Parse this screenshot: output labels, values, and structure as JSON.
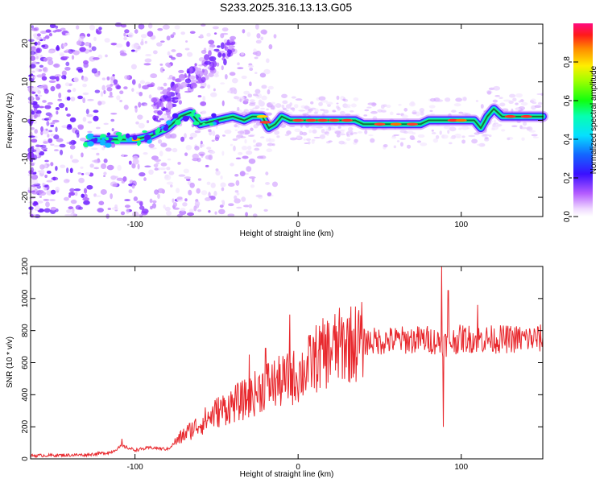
{
  "title": "S233.2025.316.13.13.G05",
  "chart_data": [
    {
      "type": "heatmap",
      "name": "spectrogram",
      "xlabel": "Height of straight line (km)",
      "ylabel": "Frequency (Hz)",
      "xlim": [
        -164,
        150
      ],
      "ylim": [
        -25,
        25
      ],
      "xticks": [
        -100,
        0,
        100
      ],
      "yticks": [
        -20,
        -10,
        0,
        10,
        20
      ],
      "ridge": [
        [
          -126,
          -5
        ],
        [
          -115,
          -5
        ],
        [
          -100,
          -5
        ],
        [
          -90,
          -4
        ],
        [
          -80,
          -2
        ],
        [
          -72,
          1
        ],
        [
          -66,
          2
        ],
        [
          -60,
          -1
        ],
        [
          -50,
          0
        ],
        [
          -40,
          1
        ],
        [
          -33,
          0
        ],
        [
          -28,
          1
        ],
        [
          -22,
          1
        ],
        [
          -18,
          -2
        ],
        [
          -14,
          -1
        ],
        [
          -10,
          1
        ],
        [
          -5,
          0
        ],
        [
          0,
          0
        ],
        [
          20,
          0
        ],
        [
          35,
          0
        ],
        [
          40,
          -1
        ],
        [
          60,
          -1
        ],
        [
          75,
          -1
        ],
        [
          80,
          0
        ],
        [
          100,
          0
        ],
        [
          108,
          0
        ],
        [
          112,
          -2
        ],
        [
          116,
          1
        ],
        [
          120,
          3
        ],
        [
          125,
          1
        ],
        [
          150,
          1
        ]
      ],
      "colorbar": {
        "label": "Normalized spectral amplitude",
        "range": [
          0,
          1
        ],
        "ticks": [
          0.0,
          0.2,
          0.4,
          0.6,
          0.8
        ]
      }
    },
    {
      "type": "line",
      "name": "snr",
      "xlabel": "Height of straight line (km)",
      "ylabel": "SNR (10 * v/v)",
      "xlim": [
        -164,
        150
      ],
      "ylim": [
        0,
        1200
      ],
      "xticks": [
        -100,
        0,
        100
      ],
      "yticks": [
        0,
        200,
        400,
        600,
        800,
        1000,
        1200
      ],
      "color": "#e8282d",
      "envelope": [
        [
          -164,
          20
        ],
        [
          -130,
          25
        ],
        [
          -115,
          40
        ],
        [
          -108,
          80
        ],
        [
          -100,
          55
        ],
        [
          -90,
          70
        ],
        [
          -80,
          60
        ],
        [
          -70,
          150
        ],
        [
          -60,
          220
        ],
        [
          -50,
          290
        ],
        [
          -40,
          340
        ],
        [
          -30,
          380
        ],
        [
          -20,
          460
        ],
        [
          -10,
          480
        ],
        [
          -5,
          500
        ],
        [
          0,
          520
        ],
        [
          5,
          560
        ],
        [
          10,
          620
        ],
        [
          20,
          680
        ],
        [
          30,
          720
        ],
        [
          40,
          730
        ],
        [
          60,
          740
        ],
        [
          80,
          745
        ],
        [
          90,
          720
        ],
        [
          100,
          750
        ],
        [
          120,
          745
        ],
        [
          150,
          750
        ]
      ],
      "spikes": [
        [
          -108,
          125
        ],
        [
          -30,
          650
        ],
        [
          -20,
          690
        ],
        [
          -5,
          900
        ],
        [
          88,
          1210
        ],
        [
          89,
          200
        ],
        [
          92,
          1050
        ],
        [
          110,
          960
        ]
      ]
    }
  ]
}
